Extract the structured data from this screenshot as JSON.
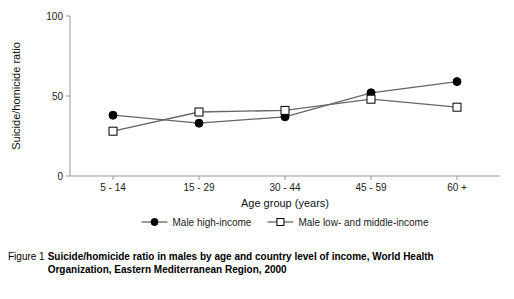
{
  "chart_data": {
    "type": "line",
    "categories": [
      "5 - 14",
      "15 - 29",
      "30 - 44",
      "45 - 59",
      "60 +"
    ],
    "series": [
      {
        "name": "Male high-income",
        "color": "#666666",
        "marker": "circle",
        "values": [
          38,
          33,
          37,
          52,
          59
        ]
      },
      {
        "name": "Male low- and middle-income",
        "color": "#666666",
        "marker": "square",
        "values": [
          28,
          40,
          41,
          48,
          43
        ]
      }
    ],
    "ylim": [
      0,
      100
    ],
    "yticks": [
      0,
      50,
      100
    ],
    "xlabel": "Age group (years)",
    "ylabel": "Suicide/homicide ratio",
    "grid": false,
    "legend": "bottom",
    "annotations": [
      "Figure 1",
      "Suicide/homicide ratio in males by age and country level of income, World Health\nOrganization, Eastern Mediterranean Region, 2000"
    ]
  }
}
